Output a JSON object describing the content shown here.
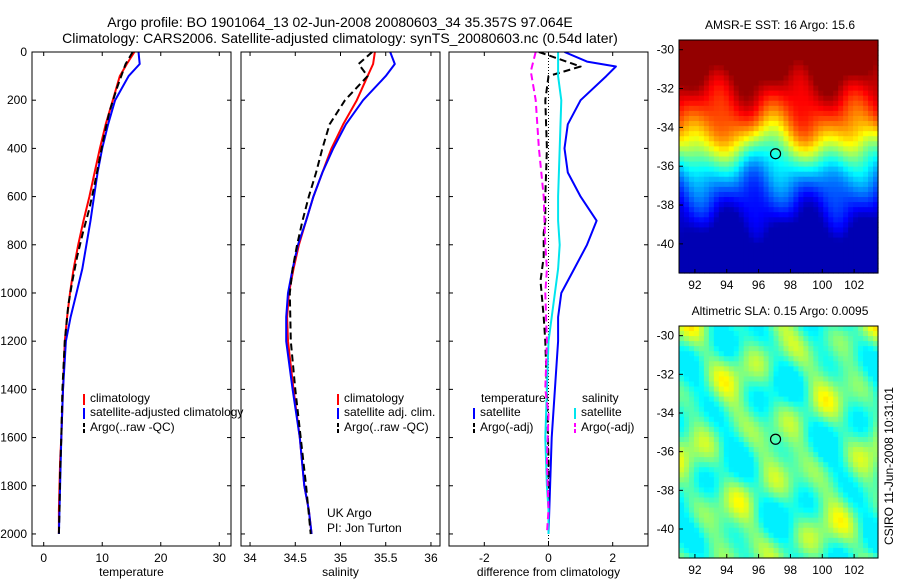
{
  "title": {
    "line1": "Argo profile: BO 1901064_13 02-Jun-2008 20080603_34 35.357S 97.064E",
    "line2": "Climatology: CARS2006. Satellite-adjusted climatology: synTS_20080603.nc (0.54d later)"
  },
  "credit": "CSIRO 11-Jun-2008 10:31:01",
  "annotation": {
    "line1": "UK Argo",
    "line2": "PI: Jon Turton"
  },
  "colors": {
    "climatology": "#ff0000",
    "satellite": "#0000ff",
    "argo": "#000000",
    "sat_salinity": "#00e5ee",
    "argo_salinity": "#ff00ff"
  },
  "depth_ticks": [
    0,
    200,
    400,
    600,
    800,
    1000,
    1200,
    1400,
    1600,
    1800,
    2000
  ],
  "chart_data": [
    {
      "type": "line",
      "xlabel": "temperature",
      "ylabel": "",
      "xlim": [
        -2,
        32
      ],
      "ylim": [
        2050,
        0
      ],
      "xticks": [
        0,
        10,
        20,
        30
      ],
      "legend": {
        "position": "bottom-right",
        "entries": [
          "climatology",
          "satellite-adjusted climatology",
          "Argo(..raw -QC)"
        ]
      },
      "series": [
        {
          "name": "climatology",
          "color": "#ff0000",
          "style": "solid",
          "x": [
            15.5,
            14.2,
            13.0,
            11.8,
            10.6,
            9.6,
            8.7,
            7.8,
            6.8,
            5.9,
            5.1,
            4.5,
            4.0,
            3.6,
            3.3,
            3.0,
            2.8,
            2.7,
            2.6,
            2.6
          ],
          "y": [
            0,
            50,
            100,
            200,
            300,
            400,
            500,
            600,
            700,
            800,
            900,
            1000,
            1100,
            1200,
            1400,
            1600,
            1700,
            1800,
            1900,
            2000
          ]
        },
        {
          "name": "satellite-adjusted climatology",
          "color": "#0000ff",
          "style": "solid",
          "x": [
            16.2,
            16.4,
            14.5,
            12.2,
            11.0,
            10.0,
            9.2,
            8.6,
            8.0,
            7.3,
            6.6,
            5.6,
            4.6,
            3.8,
            3.3,
            3.0,
            2.8,
            2.7,
            2.6
          ],
          "y": [
            0,
            50,
            100,
            200,
            300,
            400,
            500,
            600,
            700,
            800,
            900,
            1000,
            1100,
            1200,
            1400,
            1600,
            1800,
            1900,
            2000
          ]
        },
        {
          "name": "Argo(..raw -QC)",
          "color": "#000000",
          "style": "dashed",
          "x": [
            15.2,
            14.0,
            12.5,
            11.2,
            10.3,
            9.5,
            8.7,
            7.8,
            6.7,
            5.7,
            4.9,
            4.2,
            3.6,
            3.2,
            3.0,
            2.8,
            2.7,
            2.6
          ],
          "y": [
            0,
            50,
            150,
            250,
            350,
            450,
            550,
            650,
            750,
            850,
            950,
            1050,
            1200,
            1400,
            1600,
            1750,
            1900,
            2000
          ]
        }
      ]
    },
    {
      "type": "line",
      "xlabel": "salinity",
      "ylabel": "",
      "xlim": [
        33.9,
        36.1
      ],
      "ylim": [
        2050,
        0
      ],
      "xticks": [
        34,
        34.5,
        35,
        35.5,
        36
      ],
      "legend": {
        "position": "bottom-right",
        "entries": [
          "climatology",
          "satellite adj. clim.",
          "Argo(..raw -QC)"
        ]
      },
      "series": [
        {
          "name": "climatology",
          "color": "#ff0000",
          "style": "solid",
          "x": [
            35.38,
            35.36,
            35.3,
            35.18,
            35.03,
            34.9,
            34.8,
            34.7,
            34.62,
            34.54,
            34.48,
            34.43,
            34.41,
            34.42,
            34.48,
            34.55,
            34.6,
            34.65,
            34.68
          ],
          "y": [
            0,
            50,
            100,
            200,
            300,
            400,
            500,
            600,
            700,
            800,
            900,
            1000,
            1100,
            1200,
            1400,
            1600,
            1800,
            1900,
            2000
          ]
        },
        {
          "name": "satellite adj. clim.",
          "color": "#0000ff",
          "style": "solid",
          "x": [
            35.55,
            35.6,
            35.5,
            35.25,
            35.06,
            34.92,
            34.8,
            34.7,
            34.62,
            34.53,
            34.47,
            34.42,
            34.4,
            34.4,
            34.47,
            34.55,
            34.6,
            34.65,
            34.68
          ],
          "y": [
            0,
            50,
            100,
            200,
            300,
            400,
            500,
            600,
            700,
            800,
            900,
            1000,
            1100,
            1200,
            1400,
            1600,
            1800,
            1900,
            2000
          ]
        },
        {
          "name": "Argo(..raw -QC)",
          "color": "#000000",
          "style": "dashed",
          "x": [
            35.35,
            35.2,
            35.3,
            35.05,
            34.88,
            34.8,
            34.73,
            34.65,
            34.58,
            34.52,
            34.47,
            34.44,
            34.45,
            34.5,
            34.56,
            34.62,
            34.67
          ],
          "y": [
            0,
            50,
            100,
            200,
            300,
            400,
            500,
            600,
            700,
            800,
            900,
            1000,
            1200,
            1400,
            1600,
            1800,
            2000
          ]
        }
      ]
    },
    {
      "type": "line",
      "xlabel": "difference from climatology",
      "ylabel": "",
      "xlim": [
        -3.1,
        3.1
      ],
      "ylim": [
        2050,
        0
      ],
      "xticks": [
        -2,
        0,
        2
      ],
      "zero_line": true,
      "legend": {
        "position": "bottom",
        "entries": [
          "temperature",
          "satellite",
          "Argo(-adj)",
          "salinity",
          "satellite",
          "Argo(-adj)"
        ]
      },
      "series": [
        {
          "name": "satellite",
          "group": "temperature",
          "color": "#0000ff",
          "style": "solid",
          "x": [
            0.5,
            1.2,
            2.1,
            1.8,
            1.0,
            0.6,
            0.5,
            0.6,
            1.0,
            1.5,
            1.2,
            0.8,
            0.4,
            0.3,
            0.3,
            0.2,
            0.1,
            0.05,
            0.0
          ],
          "y": [
            0,
            40,
            60,
            100,
            200,
            300,
            400,
            500,
            600,
            700,
            800,
            900,
            1000,
            1100,
            1200,
            1400,
            1600,
            1800,
            2000
          ]
        },
        {
          "name": "Argo(-adj)",
          "group": "temperature",
          "color": "#000000",
          "style": "dashed",
          "x": [
            -0.3,
            1.0,
            0.0,
            -0.1,
            -0.05,
            -0.1,
            -0.1,
            -0.15,
            -0.15,
            -0.25,
            -0.15,
            -0.1,
            -0.05,
            0.0,
            0.0
          ],
          "y": [
            0,
            60,
            100,
            200,
            400,
            600,
            700,
            750,
            850,
            950,
            1100,
            1200,
            1400,
            1700,
            2000
          ]
        },
        {
          "name": "satellite",
          "group": "salinity",
          "color": "#00e5ee",
          "style": "solid",
          "x": [
            0.3,
            0.3,
            0.4,
            0.35,
            0.3,
            0.3,
            0.35,
            0.3,
            0.2,
            0.1,
            0.0,
            -0.05,
            -0.1,
            -0.05,
            0.0,
            0.0
          ],
          "y": [
            0,
            100,
            200,
            400,
            600,
            700,
            800,
            900,
            1000,
            1100,
            1200,
            1400,
            1600,
            1800,
            1900,
            2000
          ]
        },
        {
          "name": "Argo(-adj)",
          "group": "salinity",
          "color": "#ff00ff",
          "style": "dashed",
          "x": [
            -0.4,
            -0.55,
            -0.4,
            -0.3,
            -0.15,
            -0.1,
            -0.05,
            -0.1,
            -0.05,
            -0.1,
            0.0,
            -0.05,
            0.0,
            -0.05
          ],
          "y": [
            0,
            80,
            200,
            400,
            600,
            800,
            900,
            1000,
            1200,
            1400,
            1500,
            1700,
            1900,
            2000
          ]
        }
      ]
    },
    {
      "type": "heatmap",
      "title": "AMSR-E SST: 16 Argo: 15.6",
      "xlim": [
        91,
        103.5
      ],
      "ylim": [
        -41.5,
        -29.5
      ],
      "xticks": [
        92,
        94,
        96,
        98,
        100,
        102
      ],
      "yticks": [
        -30,
        -32,
        -34,
        -36,
        -38,
        -40
      ],
      "marker": {
        "x": 97.064,
        "y": -35.357
      }
    },
    {
      "type": "heatmap",
      "title": "Altimetric SLA: 0.15 Argo: 0.0095",
      "xlim": [
        91,
        103.5
      ],
      "ylim": [
        -41.5,
        -29.5
      ],
      "xticks": [
        92,
        94,
        96,
        98,
        100,
        102
      ],
      "yticks": [
        -30,
        -32,
        -34,
        -36,
        -38,
        -40
      ],
      "marker": {
        "x": 97.064,
        "y": -35.357
      }
    }
  ]
}
